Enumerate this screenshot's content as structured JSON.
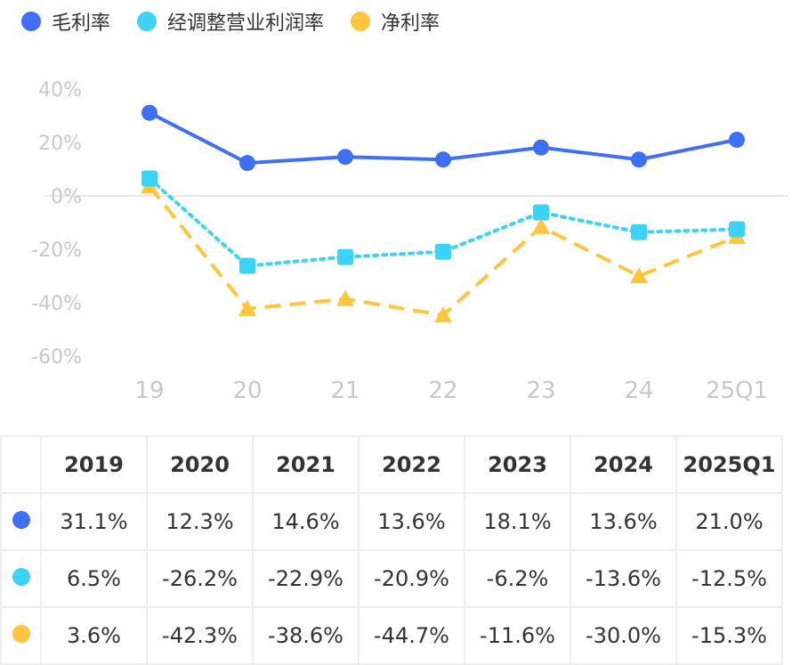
{
  "chart_data": {
    "type": "line",
    "categories": [
      "19",
      "20",
      "21",
      "22",
      "23",
      "24",
      "25Q1"
    ],
    "ylim": [
      -60,
      40
    ],
    "yticks": [
      "40%",
      "20%",
      "0%",
      "-20%",
      "-40%",
      "-60%"
    ],
    "ytick_values": [
      40,
      20,
      0,
      -20,
      -40,
      -60
    ],
    "legend_position": "top-left",
    "series": [
      {
        "name": "毛利率",
        "color": "#3f6ff4",
        "style": "solid",
        "marker": "circle",
        "values": [
          31.1,
          12.3,
          14.6,
          13.6,
          18.1,
          13.6,
          21.0
        ]
      },
      {
        "name": "经调整营业利润率",
        "color": "#3cd3f7",
        "style": "dotted",
        "marker": "square",
        "values": [
          6.5,
          -26.2,
          -22.9,
          -20.9,
          -6.2,
          -13.6,
          -12.5
        ]
      },
      {
        "name": "净利率",
        "color": "#ffc53d",
        "style": "dashed",
        "marker": "triangle",
        "values": [
          3.6,
          -42.3,
          -38.6,
          -44.7,
          -11.6,
          -30.0,
          -15.3
        ]
      }
    ]
  },
  "table": {
    "headers": [
      "2019",
      "2020",
      "2021",
      "2022",
      "2023",
      "2024",
      "2025Q1"
    ],
    "rows": [
      [
        "31.1%",
        "12.3%",
        "14.6%",
        "13.6%",
        "18.1%",
        "13.6%",
        "21.0%"
      ],
      [
        "6.5%",
        "-26.2%",
        "-22.9%",
        "-20.9%",
        "-6.2%",
        "-13.6%",
        "-12.5%"
      ],
      [
        "3.6%",
        "-42.3%",
        "-38.6%",
        "-44.7%",
        "-11.6%",
        "-30.0%",
        "-15.3%"
      ]
    ]
  }
}
